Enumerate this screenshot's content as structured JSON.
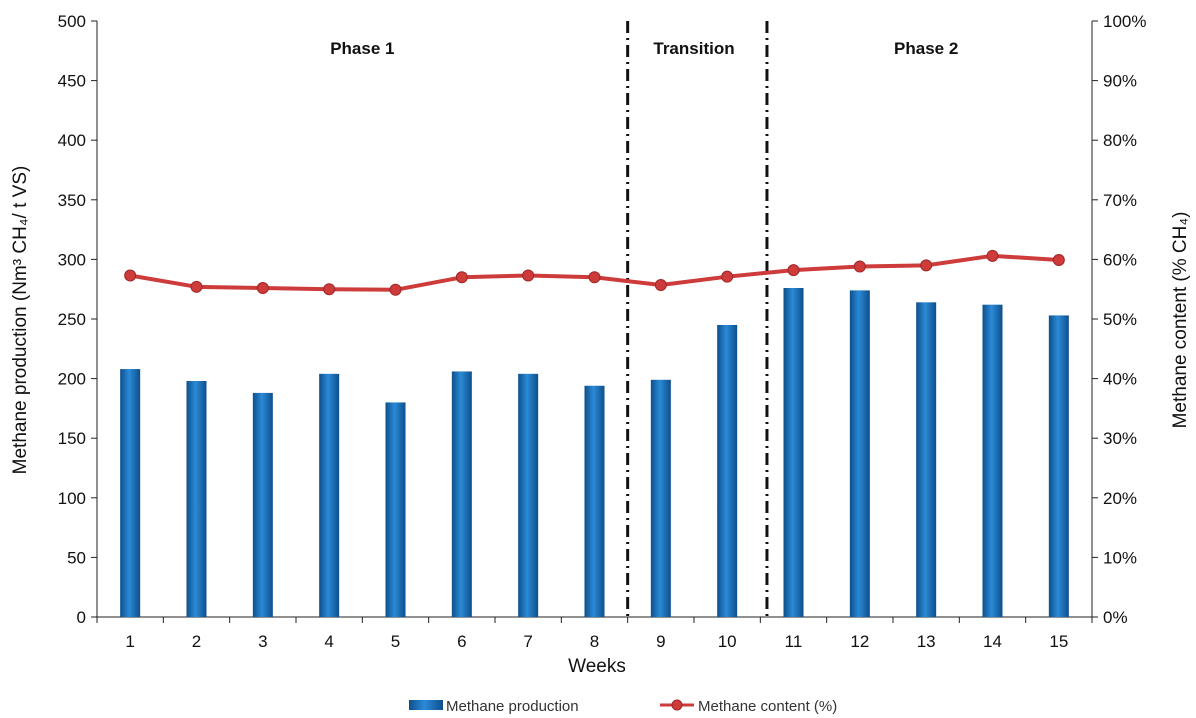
{
  "chart_data": {
    "type": "bar+line",
    "categories": [
      "1",
      "2",
      "3",
      "4",
      "5",
      "6",
      "7",
      "8",
      "9",
      "10",
      "11",
      "12",
      "13",
      "14",
      "15"
    ],
    "series": [
      {
        "name": "Methane production",
        "type": "bar",
        "axis": "left",
        "color": "#1f77c4",
        "values": [
          208,
          198,
          188,
          204,
          180,
          206,
          204,
          194,
          199,
          245,
          276,
          274,
          264,
          262,
          253
        ]
      },
      {
        "name": "Methane content (%)",
        "type": "line",
        "axis": "right",
        "color": "#cd3b3b",
        "values": [
          57.3,
          55.4,
          55.2,
          55.0,
          54.9,
          57.0,
          57.3,
          57.0,
          55.7,
          57.1,
          58.2,
          58.8,
          59.0,
          60.6,
          59.9
        ]
      }
    ],
    "xlabel": "Weeks",
    "ylabel_left": "Methane production (Nm³ CH₄/ t VS)",
    "ylabel_right": "Methane content (% CH₄)",
    "ylim_left": [
      0,
      500
    ],
    "yticks_left": [
      "0",
      "50",
      "100",
      "150",
      "200",
      "250",
      "300",
      "350",
      "400",
      "450",
      "500"
    ],
    "ylim_right": [
      0,
      100
    ],
    "yticks_right": [
      "0%",
      "10%",
      "20%",
      "30%",
      "40%",
      "50%",
      "60%",
      "70%",
      "80%",
      "90%",
      "100%"
    ],
    "phase_labels": [
      {
        "text": "Phase 1",
        "center_x": 4.5
      },
      {
        "text": "Transition",
        "center_x": 9.5
      },
      {
        "text": "Phase 2",
        "center_x": 13.0
      }
    ],
    "phase_dividers_x": [
      8.5,
      10.6
    ],
    "grid": false,
    "legend_position": "bottom"
  }
}
